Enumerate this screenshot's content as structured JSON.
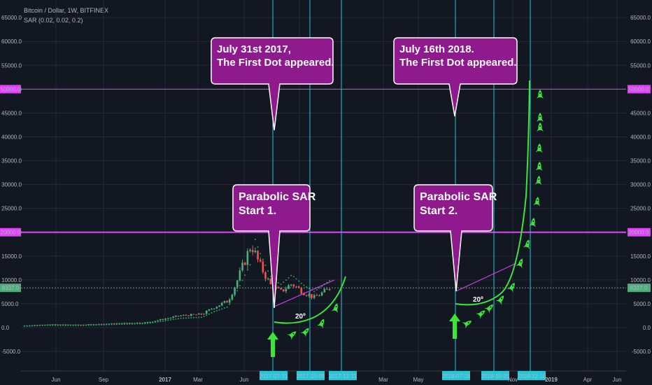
{
  "header": {
    "title": "Bitcoin / Dollar, 1W, BITFINEX",
    "indicator": "SAR (0.02, 0.02, 0.2)"
  },
  "colors": {
    "background": "#131722",
    "grid": "#232838",
    "magenta": "#e040fb",
    "cyan": "#26c6da",
    "green_curve": "#39e639",
    "callout_fill": "#8e1a8e",
    "up_candle": "#4caf7a",
    "down_candle": "#ef5350",
    "sar_dot": "#26a65b",
    "current_price": "#4caf7a"
  },
  "chart_data": {
    "type": "line",
    "title": "",
    "ylim": [
      -9000,
      66500
    ],
    "y_ticks": [
      "-5000.0",
      "0.0",
      "5000.0",
      "10000.0",
      "15000.0",
      "20000.0",
      "25000.0",
      "30000.0",
      "35000.0",
      "40000.0",
      "45000.0",
      "50000.0",
      "55000.0",
      "60000.0",
      "65000.0"
    ],
    "x_tick_labels": [
      "Jun",
      "Sep",
      "2017",
      "Mar",
      "Jun",
      "Mar",
      "May",
      "Nov",
      "2019",
      "Apr",
      "Jun"
    ],
    "date_badges": [
      "2017-07-31",
      "2017-10-09",
      "2017-12-11",
      "2018-07-16",
      "2018-10-01",
      "2018-12-10"
    ],
    "horizontal_levels": [
      {
        "label": "50000.0",
        "value": 50000
      },
      {
        "label": "20000.0",
        "value": 20000
      }
    ],
    "current_price": {
      "label": "8337.0",
      "value": 8337
    },
    "annotations": [
      {
        "text_lines": [
          "July 31st 2017,",
          "The First Dot appeared."
        ]
      },
      {
        "text_lines": [
          "July 16th 2018.",
          "The First Dot appeared."
        ]
      },
      {
        "text_lines": [
          "Parabolic SAR",
          "Start 1."
        ]
      },
      {
        "text_lines": [
          "Parabolic SAR",
          "Start 2."
        ]
      }
    ],
    "angle_labels": [
      "20º",
      "20º"
    ],
    "price_series": [
      {
        "date": "2016-04",
        "value": 420
      },
      {
        "date": "2016-06",
        "value": 650
      },
      {
        "date": "2016-09",
        "value": 600
      },
      {
        "date": "2017-01",
        "value": 950
      },
      {
        "date": "2017-03",
        "value": 1100
      },
      {
        "date": "2017-06",
        "value": 2500
      },
      {
        "date": "2017-07-31",
        "value": 2800
      },
      {
        "date": "2017-09",
        "value": 4300
      },
      {
        "date": "2017-10-09",
        "value": 5600
      },
      {
        "date": "2017-11",
        "value": 9500
      },
      {
        "date": "2017-12-11",
        "value": 17500
      },
      {
        "date": "2018-01",
        "value": 13500
      },
      {
        "date": "2018-02",
        "value": 9000
      },
      {
        "date": "2018-03",
        "value": 7500
      },
      {
        "date": "2018-04",
        "value": 9200
      },
      {
        "date": "2018-05",
        "value": 7500
      },
      {
        "date": "2018-06",
        "value": 6300
      },
      {
        "date": "2018-07-16",
        "value": 8337
      }
    ]
  }
}
